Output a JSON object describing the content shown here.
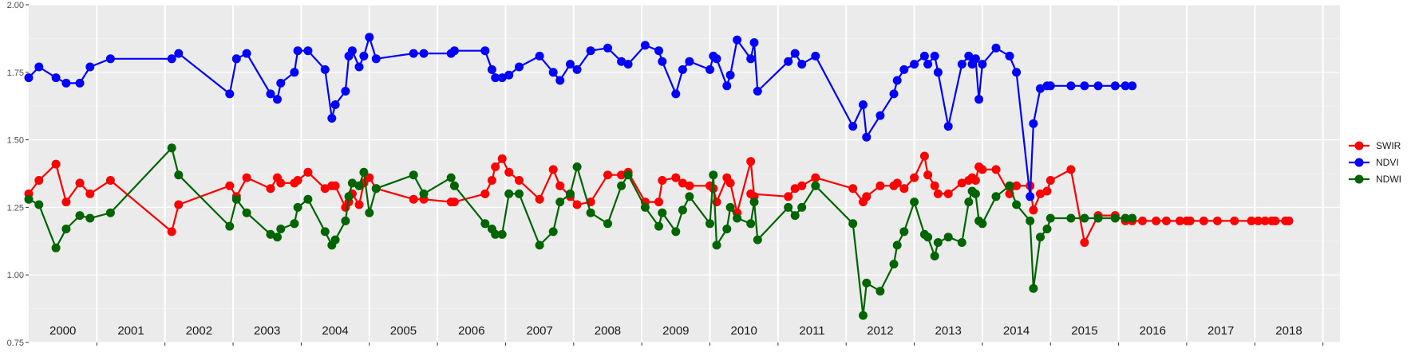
{
  "chart_data": {
    "type": "line",
    "title": "",
    "xlabel": "",
    "ylabel": "",
    "xlim": [
      1999.5,
      2018.75
    ],
    "ylim": [
      0.75,
      2.0
    ],
    "yticks": [
      "0.75",
      "1.00",
      "1.25",
      "1.50",
      "1.75",
      "2.00"
    ],
    "ytick_values": [
      0.75,
      1.0,
      1.25,
      1.5,
      1.75,
      2.0
    ],
    "year_labels": [
      "2000",
      "2001",
      "2002",
      "2003",
      "2004",
      "2005",
      "2006",
      "2007",
      "2008",
      "2009",
      "2010",
      "2011",
      "2012",
      "2013",
      "2014",
      "2015",
      "2016",
      "2017",
      "2018"
    ],
    "grid": true,
    "legend_position": "right",
    "series": [
      {
        "name": "SWIR",
        "color": "#ff0000",
        "x": [
          1999.5,
          1999.65,
          1999.9,
          2000.05,
          2000.25,
          2000.4,
          2000.7,
          2001.6,
          2001.7,
          2002.45,
          2002.55,
          2002.7,
          2003.05,
          2003.15,
          2003.2,
          2003.4,
          2003.45,
          2003.6,
          2003.85,
          2003.95,
          2004.0,
          2004.15,
          2004.2,
          2004.25,
          2004.35,
          2004.42,
          2004.5,
          2004.6,
          2005.15,
          2005.3,
          2005.7,
          2005.75,
          2006.2,
          2006.3,
          2006.35,
          2006.45,
          2006.55,
          2006.7,
          2007.0,
          2007.2,
          2007.3,
          2007.45,
          2007.55,
          2007.75,
          2008.0,
          2008.2,
          2008.3,
          2008.55,
          2008.75,
          2008.8,
          2009.0,
          2009.1,
          2009.2,
          2009.5,
          2009.55,
          2009.6,
          2009.75,
          2009.8,
          2009.9,
          2010.1,
          2010.15,
          2010.1,
          2010.65,
          2010.75,
          2010.85,
          2011.05,
          2011.6,
          2011.75,
          2011.8,
          2012.0,
          2012.2,
          2012.25,
          2012.35,
          2012.5,
          2012.65,
          2012.7,
          2012.8,
          2012.85,
          2013.0,
          2013.2,
          2013.3,
          2013.35,
          2013.4,
          2013.45,
          2013.5,
          2013.7,
          2013.9,
          2014.0,
          2014.2,
          2014.25,
          2014.35,
          2014.45,
          2014.5,
          2014.8,
          2015.0,
          2015.2,
          2015.45,
          2015.6,
          2015.7,
          2015.85,
          2016.05,
          2016.2,
          2016.4,
          2016.5,
          2016.55,
          2016.75,
          2016.95,
          2017.2,
          2017.45,
          2017.55,
          2017.65,
          2017.75,
          2017.8,
          2017.95,
          2018.0
        ],
        "y": [
          1.3,
          1.35,
          1.41,
          1.27,
          1.34,
          1.3,
          1.35,
          1.16,
          1.26,
          1.33,
          1.29,
          1.36,
          1.32,
          1.36,
          1.34,
          1.34,
          1.35,
          1.38,
          1.32,
          1.33,
          1.33,
          1.25,
          1.27,
          1.3,
          1.26,
          1.34,
          1.36,
          1.32,
          1.28,
          1.28,
          1.27,
          1.27,
          1.3,
          1.35,
          1.4,
          1.43,
          1.38,
          1.35,
          1.28,
          1.39,
          1.33,
          1.29,
          1.26,
          1.27,
          1.37,
          1.37,
          1.38,
          1.27,
          1.27,
          1.35,
          1.36,
          1.34,
          1.33,
          1.33,
          1.32,
          1.27,
          1.36,
          1.34,
          1.23,
          1.42,
          1.29,
          1.3,
          1.29,
          1.32,
          1.33,
          1.36,
          1.32,
          1.27,
          1.29,
          1.33,
          1.33,
          1.34,
          1.32,
          1.36,
          1.44,
          1.37,
          1.33,
          1.3,
          1.3,
          1.34,
          1.35,
          1.36,
          1.35,
          1.4,
          1.39,
          1.39,
          1.3,
          1.33,
          1.33,
          1.24,
          1.3,
          1.31,
          1.35,
          1.39,
          1.12,
          1.22,
          1.22,
          1.2,
          1.2,
          1.2,
          1.2,
          1.2,
          1.2,
          1.2,
          1.2,
          1.2,
          1.2,
          1.2,
          1.2,
          1.2,
          1.2,
          1.2,
          1.2,
          1.2,
          1.2
        ]
      },
      {
        "name": "NDVI",
        "color": "#0000ff",
        "x": [
          1999.5,
          1999.65,
          1999.9,
          2000.05,
          2000.25,
          2000.4,
          2000.7,
          2001.6,
          2001.7,
          2002.45,
          2002.55,
          2002.7,
          2003.05,
          2003.15,
          2003.2,
          2003.4,
          2003.45,
          2003.6,
          2003.85,
          2003.95,
          2004.0,
          2004.15,
          2004.2,
          2004.25,
          2004.35,
          2004.42,
          2004.5,
          2004.6,
          2005.15,
          2005.3,
          2005.7,
          2005.75,
          2006.2,
          2006.3,
          2006.35,
          2006.45,
          2006.55,
          2006.7,
          2007.0,
          2007.2,
          2007.3,
          2007.45,
          2007.55,
          2007.75,
          2008.0,
          2008.2,
          2008.3,
          2008.55,
          2008.75,
          2008.8,
          2009.0,
          2009.1,
          2009.2,
          2009.5,
          2009.55,
          2009.6,
          2009.75,
          2009.8,
          2009.9,
          2010.1,
          2010.15,
          2010.2,
          2010.65,
          2010.75,
          2010.85,
          2011.05,
          2011.6,
          2011.75,
          2011.8,
          2012.0,
          2012.2,
          2012.25,
          2012.35,
          2012.5,
          2012.65,
          2012.7,
          2012.8,
          2012.85,
          2013.0,
          2013.2,
          2013.3,
          2013.35,
          2013.4,
          2013.45,
          2013.5,
          2013.7,
          2013.9,
          2014.0,
          2014.2,
          2014.25,
          2014.35,
          2014.45,
          2014.5,
          2014.8,
          2015.0,
          2015.2,
          2015.45,
          2015.6,
          2015.7
        ],
        "y": [
          1.73,
          1.77,
          1.73,
          1.71,
          1.71,
          1.77,
          1.8,
          1.8,
          1.82,
          1.67,
          1.8,
          1.82,
          1.67,
          1.65,
          1.71,
          1.75,
          1.83,
          1.83,
          1.76,
          1.58,
          1.63,
          1.68,
          1.81,
          1.83,
          1.77,
          1.81,
          1.88,
          1.8,
          1.82,
          1.82,
          1.82,
          1.83,
          1.83,
          1.76,
          1.73,
          1.73,
          1.74,
          1.77,
          1.81,
          1.75,
          1.72,
          1.78,
          1.76,
          1.83,
          1.84,
          1.79,
          1.78,
          1.85,
          1.83,
          1.79,
          1.67,
          1.76,
          1.79,
          1.76,
          1.81,
          1.8,
          1.7,
          1.74,
          1.87,
          1.8,
          1.86,
          1.68,
          1.79,
          1.82,
          1.78,
          1.81,
          1.55,
          1.63,
          1.51,
          1.59,
          1.67,
          1.72,
          1.76,
          1.78,
          1.81,
          1.78,
          1.81,
          1.75,
          1.55,
          1.78,
          1.81,
          1.78,
          1.8,
          1.65,
          1.78,
          1.84,
          1.81,
          1.75,
          1.29,
          1.56,
          1.69,
          1.7,
          1.7,
          1.7,
          1.7,
          1.7,
          1.7,
          1.7,
          1.7
        ]
      },
      {
        "name": "NDWI",
        "color": "#006400",
        "x": [
          1999.5,
          1999.65,
          1999.9,
          2000.05,
          2000.25,
          2000.4,
          2000.7,
          2001.6,
          2001.7,
          2002.45,
          2002.55,
          2002.7,
          2003.05,
          2003.15,
          2003.2,
          2003.4,
          2003.45,
          2003.6,
          2003.85,
          2003.95,
          2004.0,
          2004.15,
          2004.2,
          2004.25,
          2004.35,
          2004.42,
          2004.5,
          2004.6,
          2005.15,
          2005.3,
          2005.7,
          2005.75,
          2006.2,
          2006.3,
          2006.35,
          2006.45,
          2006.55,
          2006.7,
          2007.0,
          2007.2,
          2007.3,
          2007.45,
          2007.55,
          2007.75,
          2008.0,
          2008.2,
          2008.3,
          2008.55,
          2008.75,
          2008.8,
          2009.0,
          2009.1,
          2009.2,
          2009.5,
          2009.55,
          2009.6,
          2009.75,
          2009.8,
          2009.9,
          2010.1,
          2010.15,
          2010.2,
          2010.65,
          2010.75,
          2010.85,
          2011.05,
          2011.6,
          2011.75,
          2011.8,
          2012.0,
          2012.2,
          2012.25,
          2012.35,
          2012.5,
          2012.65,
          2012.7,
          2012.8,
          2012.85,
          2013.0,
          2013.2,
          2013.3,
          2013.35,
          2013.4,
          2013.45,
          2013.5,
          2013.7,
          2013.9,
          2014.0,
          2014.2,
          2014.25,
          2014.35,
          2014.45,
          2014.5,
          2014.8,
          2015.0,
          2015.2,
          2015.45,
          2015.6,
          2015.7
        ],
        "y": [
          1.28,
          1.26,
          1.1,
          1.17,
          1.22,
          1.21,
          1.23,
          1.47,
          1.37,
          1.18,
          1.28,
          1.23,
          1.15,
          1.14,
          1.17,
          1.19,
          1.25,
          1.28,
          1.16,
          1.11,
          1.13,
          1.2,
          1.29,
          1.34,
          1.33,
          1.38,
          1.23,
          1.32,
          1.37,
          1.3,
          1.36,
          1.33,
          1.19,
          1.17,
          1.15,
          1.15,
          1.3,
          1.3,
          1.11,
          1.16,
          1.27,
          1.3,
          1.4,
          1.23,
          1.19,
          1.33,
          1.37,
          1.25,
          1.18,
          1.23,
          1.16,
          1.24,
          1.29,
          1.19,
          1.37,
          1.11,
          1.17,
          1.25,
          1.21,
          1.19,
          1.27,
          1.13,
          1.25,
          1.22,
          1.25,
          1.33,
          1.19,
          0.85,
          0.97,
          0.94,
          1.04,
          1.11,
          1.16,
          1.27,
          1.15,
          1.14,
          1.07,
          1.12,
          1.14,
          1.12,
          1.27,
          1.31,
          1.3,
          1.2,
          1.19,
          1.29,
          1.33,
          1.26,
          1.2,
          0.95,
          1.14,
          1.17,
          1.21,
          1.21,
          1.21,
          1.21,
          1.21,
          1.21,
          1.21
        ]
      }
    ]
  }
}
